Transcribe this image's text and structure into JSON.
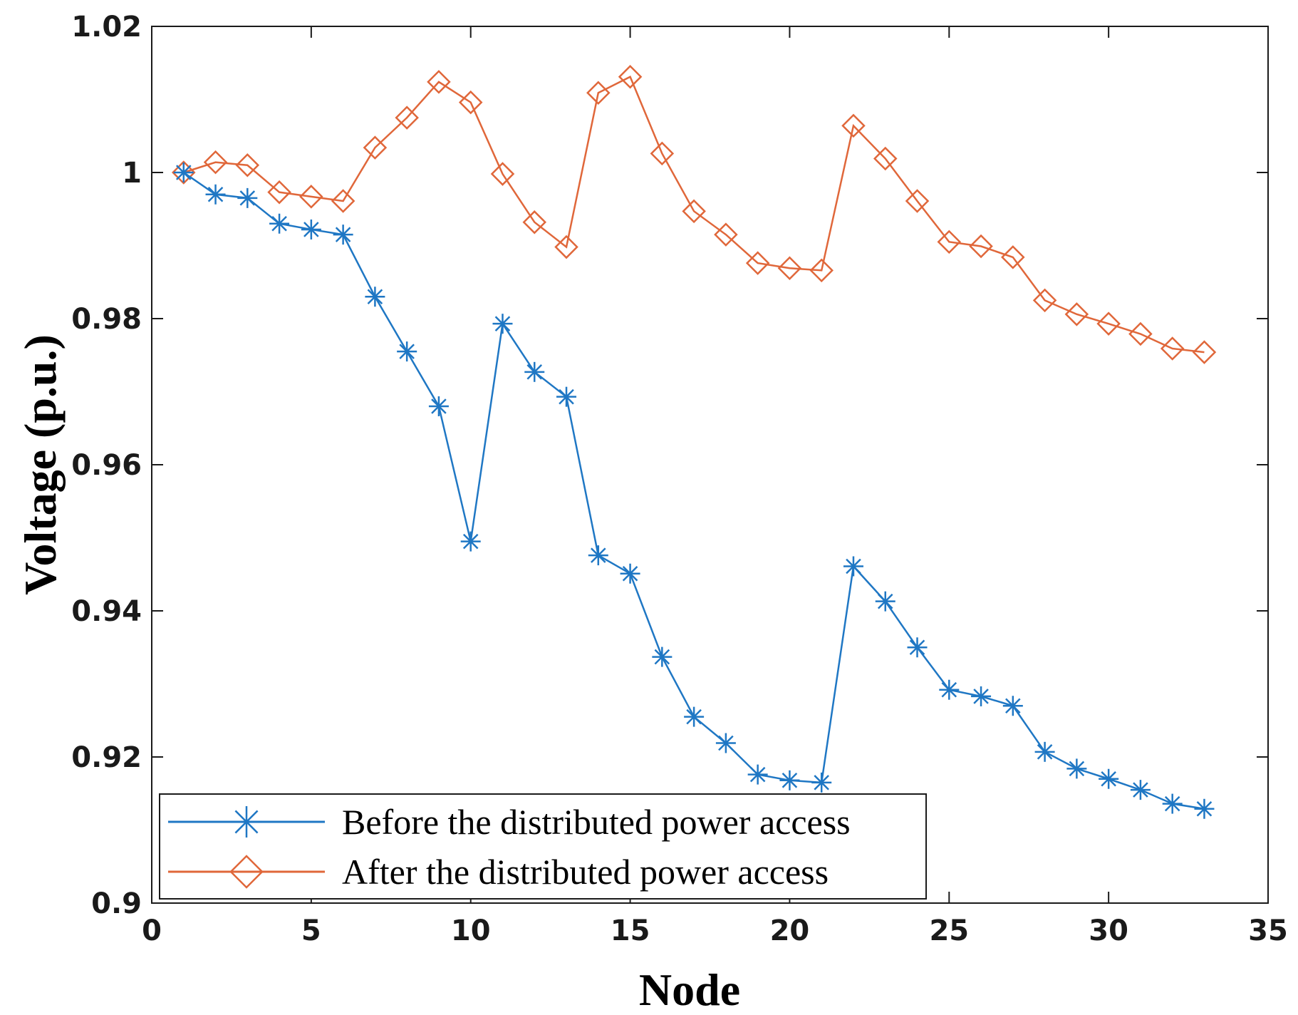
{
  "chart_data": {
    "type": "line",
    "title": "",
    "xlabel": "Node",
    "ylabel": "Voltage (p.u.)",
    "xlim": [
      0,
      35
    ],
    "ylim": [
      0.9,
      1.02
    ],
    "xticks": [
      0,
      5,
      10,
      15,
      20,
      25,
      30,
      35
    ],
    "xtick_labels": [
      "0",
      "5",
      "10",
      "15",
      "20",
      "25",
      "30",
      "35"
    ],
    "yticks": [
      0.9,
      0.92,
      0.94,
      0.96,
      0.98,
      1.0,
      1.02
    ],
    "ytick_labels": [
      "0.9",
      "0.92",
      "0.94",
      "0.96",
      "0.98",
      "1",
      "1.02"
    ],
    "grid": false,
    "legend_position": "bottom-left",
    "x": [
      1,
      2,
      3,
      4,
      5,
      6,
      7,
      8,
      9,
      10,
      11,
      12,
      13,
      14,
      15,
      16,
      17,
      18,
      19,
      20,
      21,
      22,
      23,
      24,
      25,
      26,
      27,
      28,
      29,
      30,
      31,
      32,
      33
    ],
    "series": [
      {
        "name": "Before the distributed power access",
        "color": "#1f77c4",
        "marker": "asterisk",
        "values": [
          1.0,
          0.997,
          0.9965,
          0.993,
          0.9922,
          0.9915,
          0.983,
          0.9755,
          0.968,
          0.9495,
          0.9793,
          0.9727,
          0.9693,
          0.9476,
          0.9451,
          0.9337,
          0.9255,
          0.9219,
          0.9176,
          0.9168,
          0.9165,
          0.9461,
          0.9413,
          0.935,
          0.9292,
          0.9283,
          0.927,
          0.9207,
          0.9184,
          0.917,
          0.9155,
          0.9136,
          0.9129
        ]
      },
      {
        "name": "After the distributed power access",
        "color": "#e0673a",
        "marker": "diamond",
        "values": [
          1.0,
          1.0014,
          1.001,
          0.9973,
          0.9967,
          0.9961,
          1.0034,
          1.0075,
          1.0124,
          1.0096,
          0.9998,
          0.9932,
          0.9898,
          1.0109,
          1.0131,
          1.0026,
          0.9947,
          0.9915,
          0.9876,
          0.9869,
          0.9866,
          1.0064,
          1.0019,
          0.9961,
          0.9905,
          0.9899,
          0.9884,
          0.9825,
          0.9806,
          0.9793,
          0.9779,
          0.9759,
          0.9754
        ]
      }
    ]
  }
}
